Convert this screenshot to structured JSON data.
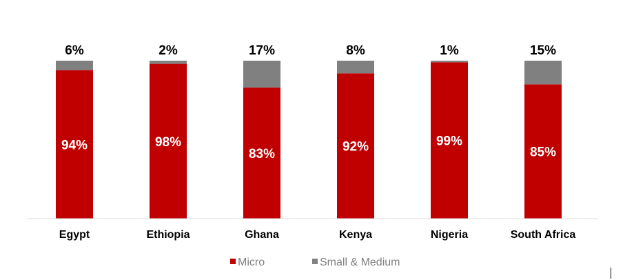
{
  "chart_data": {
    "type": "bar",
    "stacked": true,
    "title": "",
    "xlabel": "",
    "ylabel": "",
    "ylim": [
      0,
      100
    ],
    "grid": false,
    "legend_position": "bottom",
    "categories": [
      "Egypt",
      "Ethiopia",
      "Ghana",
      "Kenya",
      "Nigeria",
      "South Africa"
    ],
    "series": [
      {
        "name": "Micro",
        "color": "#c00000",
        "values": [
          94,
          98,
          83,
          92,
          99,
          85
        ],
        "labels": [
          "94%",
          "98%",
          "83%",
          "92%",
          "99%",
          "85%"
        ]
      },
      {
        "name": "Small & Medium",
        "color": "#808080",
        "values": [
          6,
          2,
          17,
          8,
          1,
          15
        ],
        "labels": [
          "6%",
          "2%",
          "17%",
          "8%",
          "1%",
          "15%"
        ]
      }
    ]
  }
}
